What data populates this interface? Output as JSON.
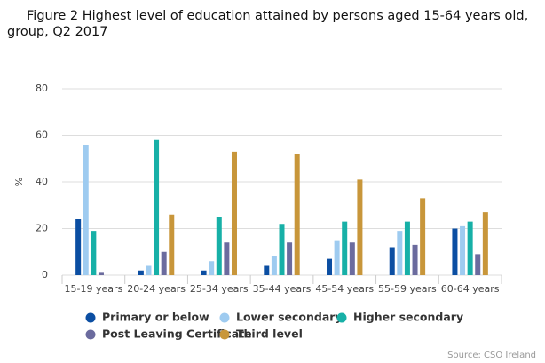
{
  "chart_data": {
    "type": "bar",
    "title": [
      "Figure 2 Highest level of education attained by persons aged 15-64 years old,",
      "group, Q2 2017"
    ],
    "y_label": "%",
    "source": "Source: CSO Ireland",
    "categories": [
      "15-19 years",
      "20-24 years",
      "25-34 years",
      "35-44 years",
      "45-54 years",
      "55-59 years",
      "60-64 years"
    ],
    "series": [
      {
        "name": "Primary or below",
        "color": "#0b4ea2",
        "values": [
          24,
          2,
          2,
          4,
          7,
          12,
          20
        ]
      },
      {
        "name": "Lower secondary",
        "color": "#9ecbf0",
        "values": [
          56,
          4,
          6,
          8,
          15,
          19,
          21
        ]
      },
      {
        "name": "Higher secondary",
        "color": "#17b0a7",
        "values": [
          19,
          58,
          25,
          22,
          23,
          23,
          23
        ]
      },
      {
        "name": "Post Leaving Certificate",
        "color": "#6b6b9e",
        "values": [
          1,
          10,
          14,
          14,
          14,
          13,
          9
        ]
      },
      {
        "name": "Third level",
        "color": "#c8963a",
        "values": [
          0,
          26,
          53,
          52,
          41,
          33,
          27
        ]
      }
    ],
    "ylim": [
      0,
      80
    ],
    "yticks": [
      0,
      20,
      40,
      60,
      80
    ],
    "grid": true
  }
}
